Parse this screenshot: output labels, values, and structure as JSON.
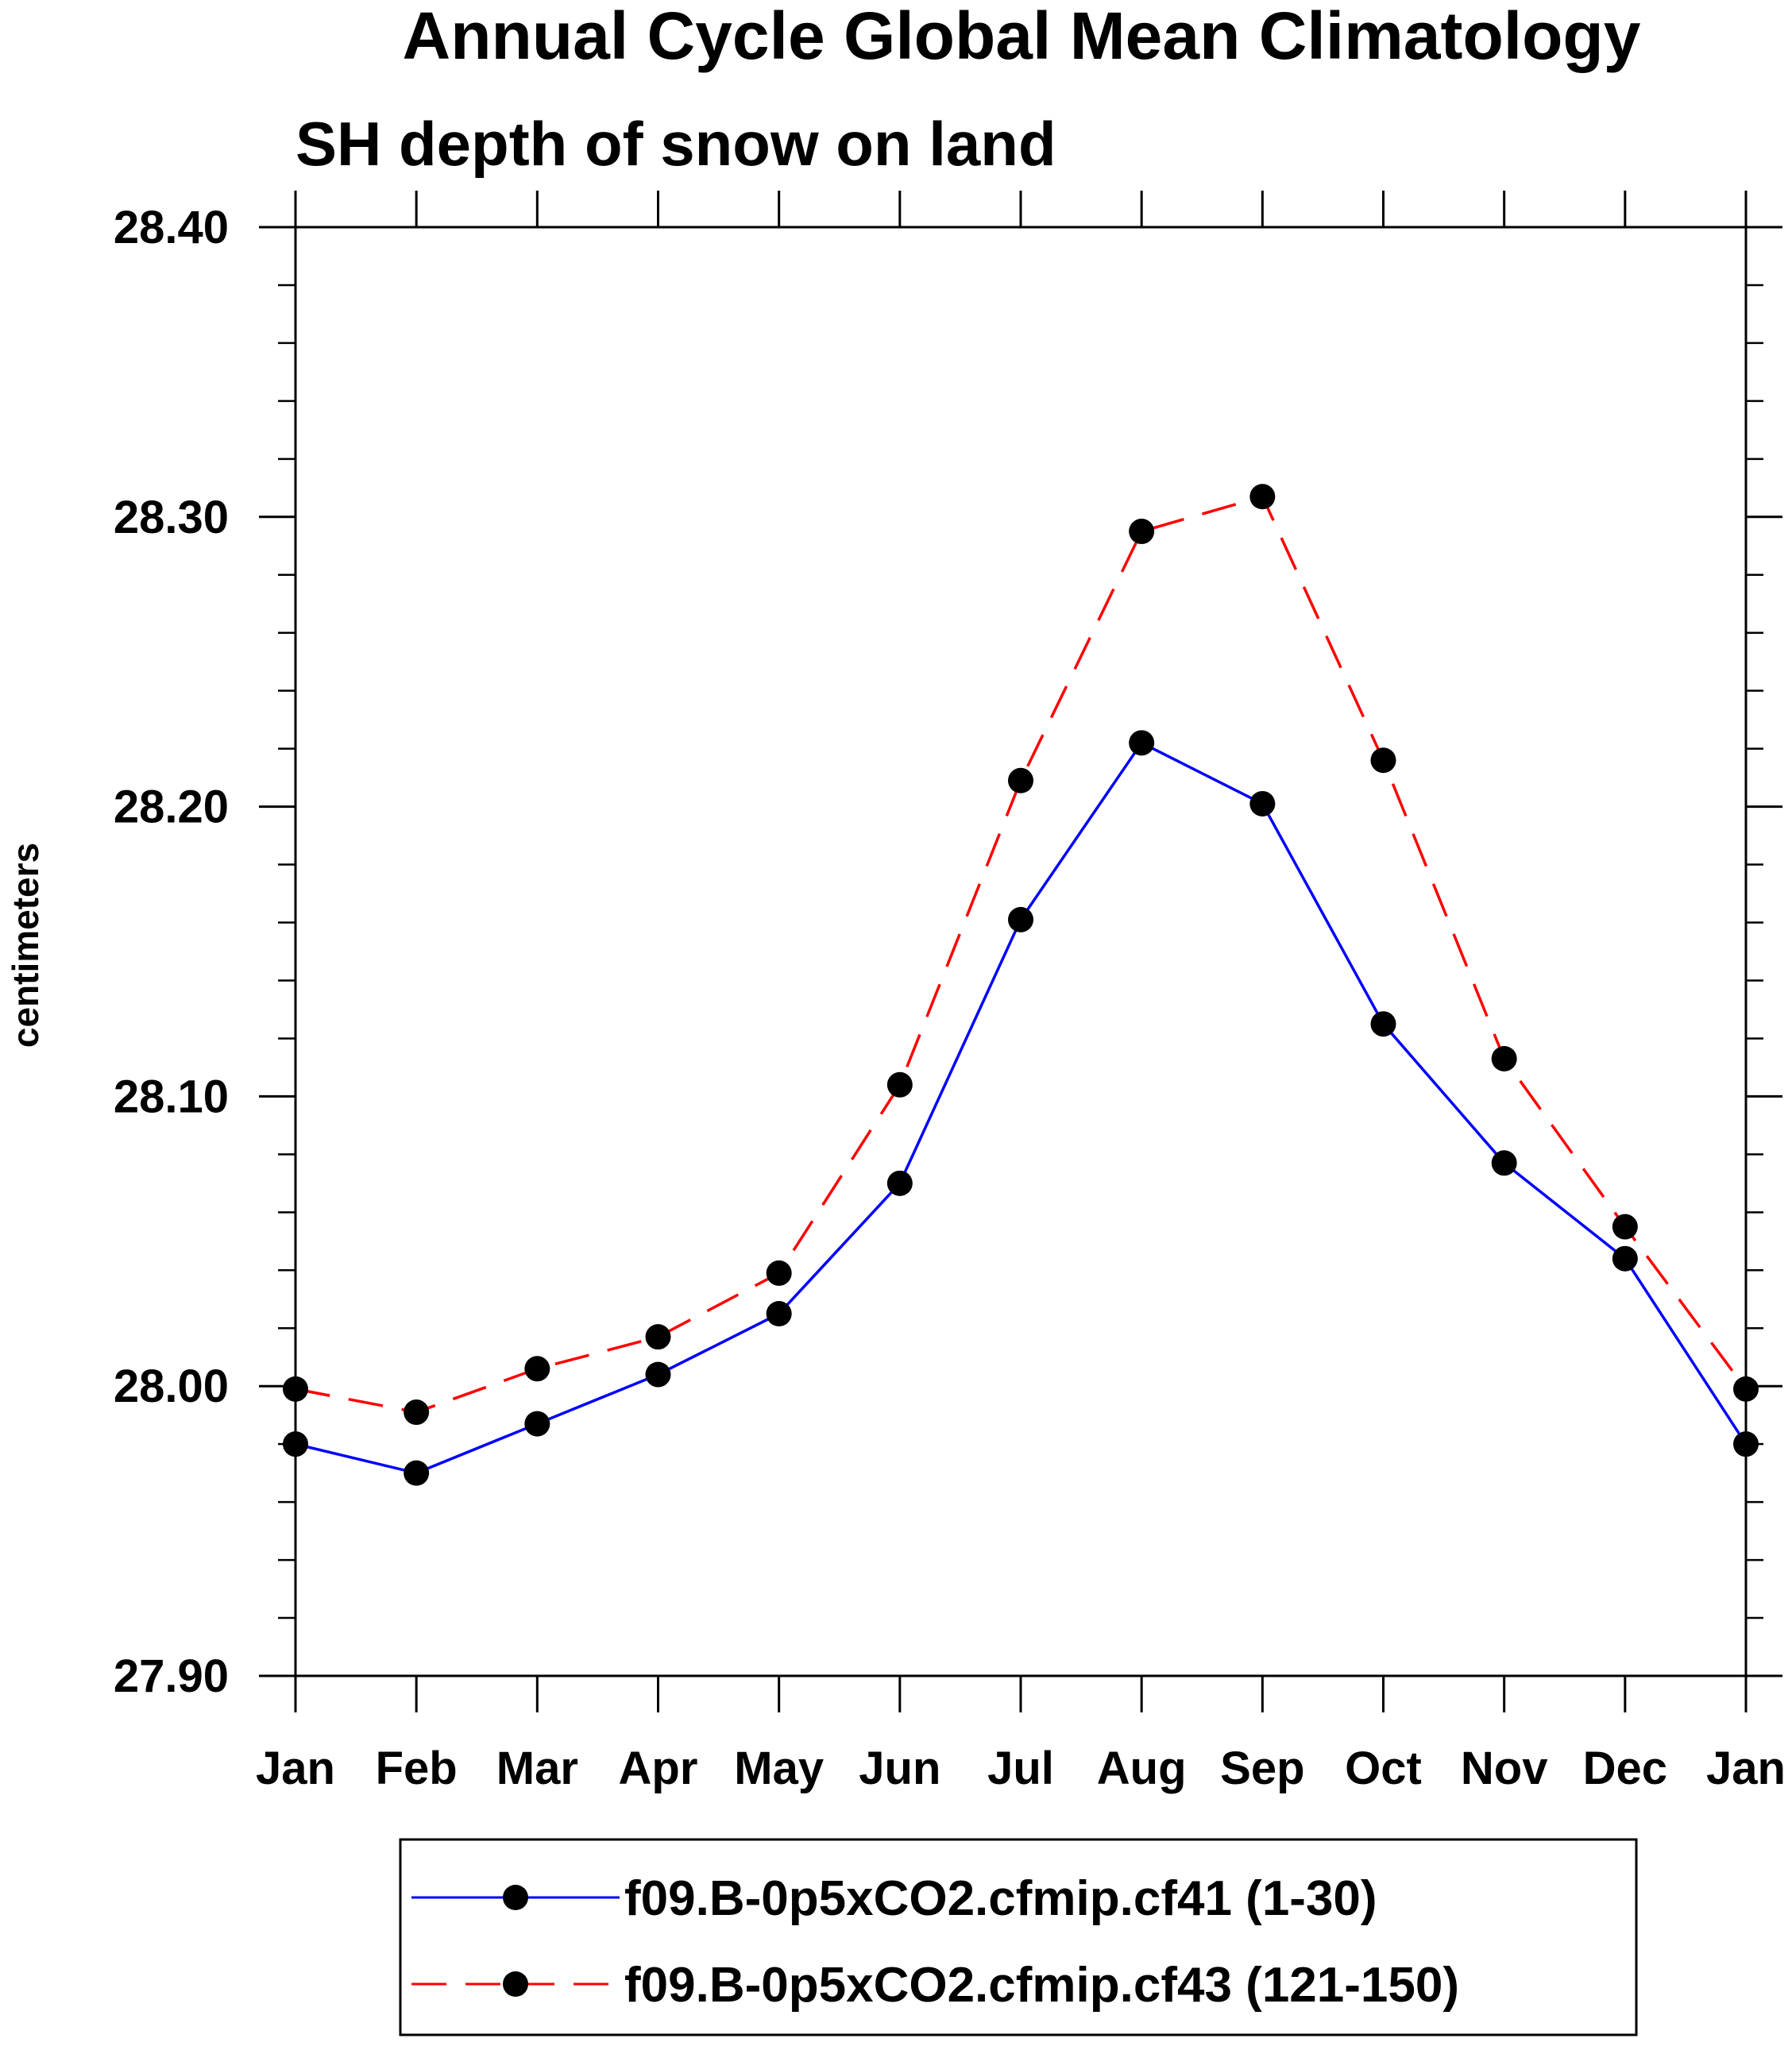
{
  "chart_data": {
    "type": "line",
    "title": "Annual Cycle Global Mean Climatology",
    "subtitle": "SH depth of snow on land",
    "xlabel": "",
    "ylabel": "centimeters",
    "categories": [
      "Jan",
      "Feb",
      "Mar",
      "Apr",
      "May",
      "Jun",
      "Jul",
      "Aug",
      "Sep",
      "Oct",
      "Nov",
      "Dec",
      "Jan"
    ],
    "ylim": [
      27.9,
      28.4
    ],
    "yticks": [
      27.9,
      28.0,
      28.1,
      28.2,
      28.3,
      28.4
    ],
    "ytick_labels": [
      "27.90",
      "28.00",
      "28.10",
      "28.20",
      "28.30",
      "28.40"
    ],
    "minor_ytick_step": 0.02,
    "grid": false,
    "legend_position": "bottom",
    "series": [
      {
        "name": "f09.B-0p5xCO2.cfmip.cf41 (1-30)",
        "color": "#0000ff",
        "line_style": "solid",
        "marker": "filled-circle",
        "marker_color": "#000000",
        "values": [
          27.98,
          27.97,
          27.987,
          28.004,
          28.025,
          28.07,
          28.161,
          28.222,
          28.201,
          28.125,
          28.077,
          28.044,
          27.98
        ]
      },
      {
        "name": "f09.B-0p5xCO2.cfmip.cf43 (121-150)",
        "color": "#ff0000",
        "line_style": "dashed",
        "marker": "filled-circle",
        "marker_color": "#000000",
        "values": [
          27.999,
          27.991,
          28.006,
          28.017,
          28.039,
          28.104,
          28.209,
          28.295,
          28.307,
          28.216,
          28.113,
          28.055,
          27.999
        ]
      }
    ]
  }
}
